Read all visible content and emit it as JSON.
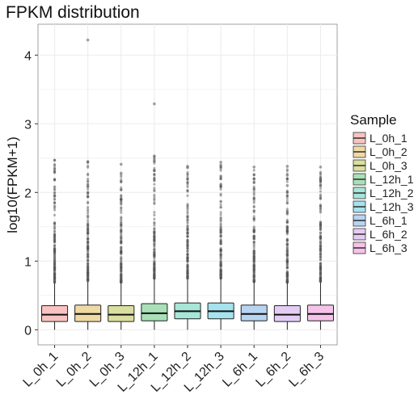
{
  "chart_data": {
    "type": "box",
    "title": "FPKM distribution",
    "xlabel": "",
    "ylabel": "log10(FPKM+1)",
    "ylim": [
      -0.22,
      4.45
    ],
    "yticks": [
      "0",
      "1",
      "2",
      "3",
      "4"
    ],
    "grid": true,
    "legend_title": "Sample",
    "legend_position": "right",
    "categories": [
      "L_0h_1",
      "L_0h_2",
      "L_0h_3",
      "L_12h_1",
      "L_12h_2",
      "L_12h_3",
      "L_6h_1",
      "L_6h_2",
      "L_6h_3"
    ],
    "colors": [
      "#f8c3c1",
      "#efd9a4",
      "#dadfa0",
      "#a9e0b8",
      "#a7e6d8",
      "#a6e3ee",
      "#b8d4f3",
      "#e4cdf4",
      "#f7c2ea"
    ],
    "boxes": [
      {
        "min": 0,
        "q1": 0.12,
        "median": 0.22,
        "q3": 0.35,
        "upper_whisker": 0.68,
        "outliers_low": 0.69,
        "outliers_high": 2.47,
        "outliers_extra": [
          2.47,
          2.08,
          1.95,
          1.8
        ]
      },
      {
        "min": 0,
        "q1": 0.12,
        "median": 0.23,
        "q3": 0.36,
        "upper_whisker": 0.7,
        "outliers_low": 0.71,
        "outliers_high": 2.45,
        "outliers_extra": [
          4.22,
          2.45,
          2.09,
          1.94
        ]
      },
      {
        "min": 0,
        "q1": 0.12,
        "median": 0.22,
        "q3": 0.35,
        "upper_whisker": 0.68,
        "outliers_low": 0.69,
        "outliers_high": 2.28,
        "outliers_extra": [
          2.41,
          2.28,
          2.04
        ]
      },
      {
        "min": 0,
        "q1": 0.13,
        "median": 0.24,
        "q3": 0.38,
        "upper_whisker": 0.74,
        "outliers_low": 0.75,
        "outliers_high": 2.53,
        "outliers_extra": [
          3.29,
          2.53,
          2.46,
          2.32
        ]
      },
      {
        "min": 0,
        "q1": 0.16,
        "median": 0.27,
        "q3": 0.39,
        "upper_whisker": 0.74,
        "outliers_low": 0.75,
        "outliers_high": 2.36,
        "outliers_extra": [
          2.38,
          2.36,
          2.2
        ]
      },
      {
        "min": 0,
        "q1": 0.16,
        "median": 0.27,
        "q3": 0.39,
        "upper_whisker": 0.74,
        "outliers_low": 0.75,
        "outliers_high": 2.4,
        "outliers_extra": [
          2.44,
          2.4,
          2.2
        ]
      },
      {
        "min": 0,
        "q1": 0.13,
        "median": 0.23,
        "q3": 0.36,
        "upper_whisker": 0.69,
        "outliers_low": 0.7,
        "outliers_high": 2.37,
        "outliers_extra": [
          2.37,
          2.2,
          2.05
        ]
      },
      {
        "min": 0,
        "q1": 0.12,
        "median": 0.22,
        "q3": 0.35,
        "upper_whisker": 0.68,
        "outliers_low": 0.69,
        "outliers_high": 2.38,
        "outliers_extra": [
          2.38,
          2.25,
          2.1
        ]
      },
      {
        "min": 0,
        "q1": 0.13,
        "median": 0.23,
        "q3": 0.36,
        "upper_whisker": 0.69,
        "outliers_low": 0.7,
        "outliers_high": 2.37,
        "outliers_extra": [
          2.37,
          2.2,
          2.1
        ]
      }
    ]
  }
}
